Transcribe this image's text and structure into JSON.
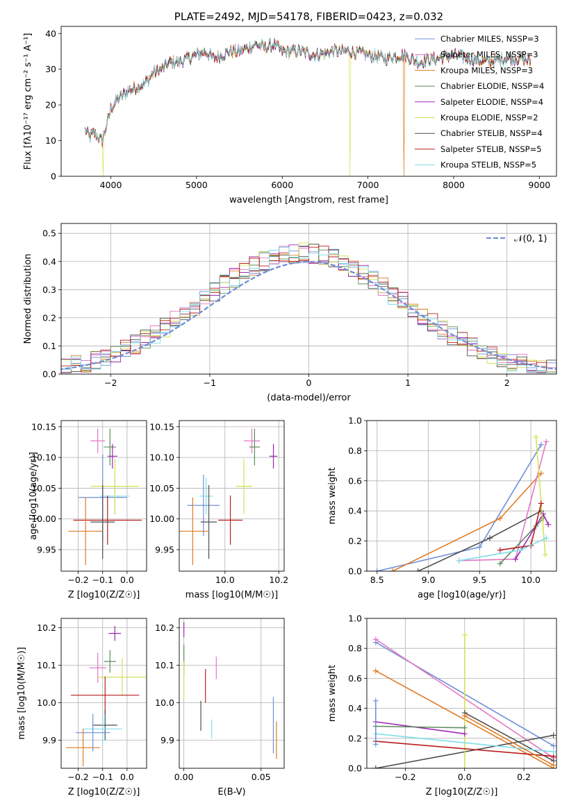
{
  "chart_data": [
    {
      "type": "line",
      "title": "PLATE=2492, MJD=54178, FIBERID=0423, z=0.032",
      "xlabel": "wavelength [Angstrom, rest frame]",
      "ylabel": "Flux [fλ10⁻¹⁷ erg cm⁻² s⁻¹ A⁻¹]",
      "xlim": [
        3420,
        9200
      ],
      "ylim": [
        0,
        42
      ],
      "xticks": [
        4000,
        5000,
        6000,
        7000,
        8000,
        9000
      ],
      "yticks": [
        0,
        10,
        20,
        30,
        40
      ],
      "grid": false,
      "legend_position": "top-right",
      "series": [
        {
          "name": "Chabrier MILES, NSSP=3",
          "color": "#6f8fd8"
        },
        {
          "name": "Salpeter MILES, NSSP=3",
          "color": "#e377c2"
        },
        {
          "name": "Kroupa MILES, NSSP=3",
          "color": "#e07b24"
        },
        {
          "name": "Chabrier ELODIE, NSSP=4",
          "color": "#5c8a5c"
        },
        {
          "name": "Salpeter ELODIE, NSSP=4",
          "color": "#9c27b0"
        },
        {
          "name": "Kroupa ELODIE, NSSP=2",
          "color": "#d4e157"
        },
        {
          "name": "Chabrier STELIB, NSSP=4",
          "color": "#4d4d4d"
        },
        {
          "name": "Salpeter STELIB, NSSP=5",
          "color": "#b71c1c"
        },
        {
          "name": "Kroupa STELIB, NSSP=5",
          "color": "#80deea"
        }
      ],
      "spectrum_profile": {
        "x": [
          3700,
          3750,
          3800,
          3850,
          3900,
          3950,
          4000,
          4100,
          4200,
          4300,
          4400,
          4500,
          4600,
          4700,
          4800,
          4900,
          5000,
          5100,
          5200,
          5300,
          5400,
          5500,
          5600,
          5700,
          5800,
          5900,
          6000,
          6200,
          6400,
          6600,
          6800,
          7000,
          7200,
          7400,
          7600,
          7800,
          8000,
          8200,
          8400,
          8600,
          8800,
          8900
        ],
        "y": [
          13,
          11,
          12,
          11,
          10,
          14,
          19,
          22,
          24,
          25,
          26,
          29,
          30,
          32,
          32,
          33,
          34,
          35,
          33,
          34,
          35,
          35,
          36,
          37,
          36,
          37,
          35,
          35,
          34,
          35,
          35,
          34,
          33,
          34,
          32,
          33,
          34,
          33,
          32,
          33,
          33,
          32
        ]
      },
      "dropouts": [
        {
          "x": 3910,
          "color": "#d4e157"
        },
        {
          "x": 6790,
          "color": "#d4e157"
        },
        {
          "x": 7420,
          "color": "#e07b24"
        }
      ]
    },
    {
      "type": "line",
      "xlabel": "(data-model)/error",
      "ylabel": "Normed distribution",
      "xlim": [
        -2.5,
        2.5
      ],
      "ylim": [
        0,
        0.535
      ],
      "xticks": [
        -2,
        -1,
        0,
        1,
        2
      ],
      "yticks": [
        0.0,
        0.1,
        0.2,
        0.3,
        0.4,
        0.5
      ],
      "grid": true,
      "legend_position": "top-right",
      "legend": [
        "𝒩(0, 1)"
      ],
      "gaussian_color": "#6f8fd8",
      "bin_width": 0.1,
      "hist_colors": [
        "#6f8fd8",
        "#e377c2",
        "#e07b24",
        "#5c8a5c",
        "#9c27b0",
        "#d4e157",
        "#4d4d4d",
        "#b71c1c",
        "#80deea"
      ]
    },
    {
      "type": "scatter",
      "xlabel": "Z [log10(Z/Z☉)]",
      "ylabel": "age  [log10(age/yr)]",
      "xlim": [
        -0.27,
        0.08
      ],
      "ylim": [
        9.915,
        10.16
      ],
      "xticks": [
        -0.2,
        -0.1,
        0.0
      ],
      "yticks": [
        9.95,
        10.0,
        10.05,
        10.1,
        10.15
      ],
      "grid": true,
      "error_crosses": [
        {
          "x": -0.12,
          "xe": 0.03,
          "y": 10.127,
          "ye": 0.02,
          "color": "#e377c2"
        },
        {
          "x": -0.07,
          "xe": 0.025,
          "y": 10.117,
          "ye": 0.03,
          "color": "#5c8a5c"
        },
        {
          "x": -0.06,
          "xe": 0.02,
          "y": 10.102,
          "ye": 0.02,
          "color": "#9c27b0"
        },
        {
          "x": -0.1,
          "xe": 0.1,
          "y": 10.035,
          "ye": 0.07,
          "color": "#6f8fd8"
        },
        {
          "x": -0.05,
          "xe": 0.06,
          "y": 10.037,
          "ye": 0.03,
          "color": "#80deea"
        },
        {
          "x": -0.05,
          "xe": 0.1,
          "y": 10.053,
          "ye": 0.045,
          "color": "#d4e157"
        },
        {
          "x": -0.08,
          "xe": 0.14,
          "y": 9.998,
          "ye": 0.04,
          "color": "#b71c1c"
        },
        {
          "x": -0.1,
          "xe": 0.05,
          "y": 9.995,
          "ye": 0.06,
          "color": "#4d4d4d"
        },
        {
          "x": -0.17,
          "xe": 0.07,
          "y": 9.98,
          "ye": 0.055,
          "color": "#e07b24"
        }
      ]
    },
    {
      "type": "scatter",
      "xlabel": "mass [log10(M/M☉)]",
      "xlim": [
        9.83,
        10.22
      ],
      "ylim": [
        9.915,
        10.16
      ],
      "xticks": [
        10.0,
        10.2
      ],
      "yticks": [
        9.95,
        10.0,
        10.05,
        10.1,
        10.15
      ],
      "grid": true,
      "error_crosses": [
        {
          "x": 10.1,
          "xe": 0.03,
          "y": 10.127,
          "ye": 0.02,
          "color": "#e377c2"
        },
        {
          "x": 10.11,
          "xe": 0.02,
          "y": 10.117,
          "ye": 0.03,
          "color": "#5c8a5c"
        },
        {
          "x": 10.18,
          "xe": 0.015,
          "y": 10.102,
          "ye": 0.02,
          "color": "#9c27b0"
        },
        {
          "x": 9.92,
          "xe": 0.06,
          "y": 10.022,
          "ye": 0.05,
          "color": "#6f8fd8"
        },
        {
          "x": 9.93,
          "xe": 0.025,
          "y": 10.037,
          "ye": 0.03,
          "color": "#80deea"
        },
        {
          "x": 10.07,
          "xe": 0.03,
          "y": 10.053,
          "ye": 0.045,
          "color": "#d4e157"
        },
        {
          "x": 10.02,
          "xe": 0.045,
          "y": 9.998,
          "ye": 0.04,
          "color": "#b71c1c"
        },
        {
          "x": 9.94,
          "xe": 0.03,
          "y": 9.995,
          "ye": 0.06,
          "color": "#4d4d4d"
        },
        {
          "x": 9.88,
          "xe": 0.06,
          "y": 9.98,
          "ye": 0.055,
          "color": "#e07b24"
        }
      ]
    },
    {
      "type": "line",
      "xlabel": "age  [log10(age/yr)]",
      "ylabel": "mass weight",
      "xlim": [
        8.4,
        10.25
      ],
      "ylim": [
        0,
        1.0
      ],
      "xticks": [
        8.5,
        9.0,
        9.5,
        10.0
      ],
      "yticks": [
        0.0,
        0.2,
        0.4,
        0.6,
        0.8,
        1.0
      ],
      "grid": true,
      "series": [
        {
          "color": "#6f8fd8",
          "x": [
            8.5,
            9.5,
            10.1
          ],
          "y": [
            0.0,
            0.16,
            0.84
          ]
        },
        {
          "color": "#e07b24",
          "x": [
            8.65,
            9.7,
            10.1
          ],
          "y": [
            0.0,
            0.35,
            0.65
          ]
        },
        {
          "color": "#4d4d4d",
          "x": [
            8.9,
            9.6,
            10.1
          ],
          "y": [
            0.0,
            0.22,
            0.4
          ]
        },
        {
          "color": "#e377c2",
          "x": [
            9.3,
            9.85,
            10.15
          ],
          "y": [
            0.07,
            0.08,
            0.86
          ]
        },
        {
          "color": "#5c8a5c",
          "x": [
            9.7,
            10.05,
            10.12
          ],
          "y": [
            0.05,
            0.3,
            0.35
          ]
        },
        {
          "color": "#9c27b0",
          "x": [
            9.85,
            10.12,
            10.17
          ],
          "y": [
            0.08,
            0.38,
            0.31
          ]
        },
        {
          "color": "#d4e157",
          "x": [
            10.05,
            10.14
          ],
          "y": [
            0.89,
            0.11
          ]
        },
        {
          "color": "#b71c1c",
          "x": [
            9.7,
            10.0,
            10.1
          ],
          "y": [
            0.14,
            0.17,
            0.45
          ]
        },
        {
          "color": "#80deea",
          "x": [
            9.3,
            9.9,
            10.15
          ],
          "y": [
            0.07,
            0.14,
            0.22
          ]
        }
      ]
    },
    {
      "type": "scatter",
      "xlabel": "Z [log10(Z/Z☉)]",
      "ylabel": "mass [log10(M/M☉)]",
      "xlim": [
        -0.27,
        0.08
      ],
      "ylim": [
        9.825,
        10.225
      ],
      "xticks": [
        -0.2,
        -0.1,
        0.0
      ],
      "yticks": [
        9.9,
        10.0,
        10.1,
        10.2
      ],
      "grid": true,
      "error_crosses": [
        {
          "x": -0.05,
          "xe": 0.025,
          "y": 10.185,
          "ye": 0.02,
          "color": "#9c27b0"
        },
        {
          "x": -0.12,
          "xe": 0.035,
          "y": 10.093,
          "ye": 0.04,
          "color": "#e377c2"
        },
        {
          "x": -0.07,
          "xe": 0.025,
          "y": 10.11,
          "ye": 0.03,
          "color": "#5c8a5c"
        },
        {
          "x": -0.02,
          "xe": 0.1,
          "y": 10.068,
          "ye": 0.05,
          "color": "#d4e157"
        },
        {
          "x": -0.09,
          "xe": 0.14,
          "y": 10.02,
          "ye": 0.05,
          "color": "#b71c1c"
        },
        {
          "x": -0.09,
          "xe": 0.05,
          "y": 9.94,
          "ye": 0.04,
          "color": "#4d4d4d"
        },
        {
          "x": -0.1,
          "xe": 0.08,
          "y": 9.93,
          "ye": 0.04,
          "color": "#80deea"
        },
        {
          "x": -0.14,
          "xe": 0.07,
          "y": 9.92,
          "ye": 0.05,
          "color": "#6f8fd8"
        },
        {
          "x": -0.18,
          "xe": 0.07,
          "y": 9.88,
          "ye": 0.05,
          "color": "#e07b24"
        }
      ]
    },
    {
      "type": "scatter",
      "xlabel": "E(B-V)",
      "xlim": [
        -0.003,
        0.065
      ],
      "ylim": [
        9.825,
        10.225
      ],
      "xticks": [
        0.0,
        0.05
      ],
      "yticks": [
        9.9,
        10.0,
        10.1,
        10.2
      ],
      "grid": true,
      "error_crosses": [
        {
          "x": 0.0,
          "y": 10.195,
          "ye": 0.02,
          "color": "#9c27b0"
        },
        {
          "x": 0.0,
          "y": 10.115,
          "ye": 0.04,
          "color": "#5c8a5c"
        },
        {
          "x": 0.0,
          "y": 10.06,
          "ye": 0.05,
          "color": "#d4e157"
        },
        {
          "x": 0.021,
          "y": 10.093,
          "ye": 0.03,
          "color": "#e377c2"
        },
        {
          "x": 0.014,
          "y": 10.045,
          "ye": 0.045,
          "color": "#b71c1c"
        },
        {
          "x": 0.011,
          "y": 9.965,
          "ye": 0.04,
          "color": "#4d4d4d"
        },
        {
          "x": 0.018,
          "y": 9.93,
          "ye": 0.025,
          "color": "#80deea"
        },
        {
          "x": 0.058,
          "y": 9.94,
          "ye": 0.075,
          "color": "#6f8fd8"
        },
        {
          "x": 0.06,
          "y": 9.9,
          "ye": 0.05,
          "color": "#e07b24"
        }
      ]
    },
    {
      "type": "line",
      "xlabel": "Z [log10(Z/Z☉)]",
      "ylabel": "mass weight",
      "xlim": [
        -0.33,
        0.31
      ],
      "ylim": [
        0,
        1.0
      ],
      "xticks": [
        -0.2,
        0.0,
        0.2
      ],
      "yticks": [
        0.0,
        0.2,
        0.4,
        0.6,
        0.8,
        1.0
      ],
      "grid": true,
      "series": [
        {
          "color": "#6f8fd8",
          "x": [
            -0.3,
            0.3
          ],
          "y": [
            0.84,
            0.15
          ]
        },
        {
          "color": "#e377c2",
          "x": [
            -0.3,
            0.3
          ],
          "y": [
            0.86,
            0.07
          ]
        },
        {
          "color": "#e07b24",
          "x": [
            -0.3,
            0.3
          ],
          "y": [
            0.65,
            0.0
          ]
        },
        {
          "color": "#4d4d4d",
          "x": [
            -0.3,
            0.3
          ],
          "y": [
            0.0,
            0.22
          ]
        },
        {
          "color": "#d4e157",
          "x": [
            0.0,
            0.0
          ],
          "y": [
            0.0,
            0.89
          ]
        },
        {
          "color": "#9c27b0",
          "x": [
            -0.3,
            0.0
          ],
          "y": [
            0.31,
            0.23
          ]
        },
        {
          "color": "#5c8a5c",
          "x": [
            -0.3,
            0.0
          ],
          "y": [
            0.28,
            0.27
          ]
        },
        {
          "color": "#4d4d4d",
          "x": [
            0.0,
            0.3
          ],
          "y": [
            0.37,
            0.05
          ]
        },
        {
          "color": "#b71c1c",
          "x": [
            -0.3,
            0.3
          ],
          "y": [
            0.18,
            0.08
          ]
        },
        {
          "color": "#80deea",
          "x": [
            -0.3,
            0.3
          ],
          "y": [
            0.23,
            0.11
          ]
        },
        {
          "color": "#e07b24",
          "x": [
            0.0,
            0.3
          ],
          "y": [
            0.35,
            0.02
          ]
        },
        {
          "color": "#6f8fd8",
          "x": [
            -0.3,
            -0.3
          ],
          "y": [
            0.16,
            0.45
          ]
        }
      ]
    }
  ]
}
